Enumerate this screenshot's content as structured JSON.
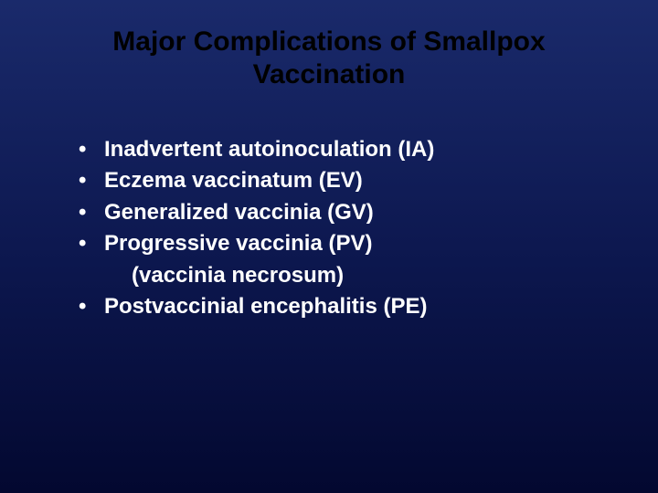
{
  "slide": {
    "title": "Major Complications of Smallpox Vaccination",
    "title_color": "#000000",
    "title_fontsize": 30,
    "body_color": "#ffffff",
    "body_fontsize": 24,
    "background_gradient_top": "#1a2a6b",
    "background_gradient_mid": "#0d1850",
    "background_gradient_bottom": "#030830",
    "bullets": [
      {
        "text": "Inadvertent autoinoculation (IA)"
      },
      {
        "text": "Eczema vaccinatum (EV)"
      },
      {
        "text": "Generalized vaccinia (GV)"
      },
      {
        "text": "Progressive vaccinia (PV)",
        "continuation": "(vaccinia necrosum)"
      },
      {
        "text": "Postvaccinial encephalitis (PE)"
      }
    ]
  }
}
